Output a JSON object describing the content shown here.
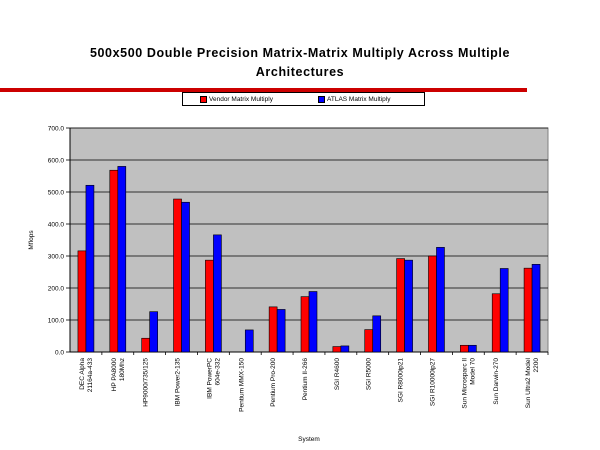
{
  "title_lines": [
    "500x500 Double Precision Matrix-Matrix Multiply Across Multiple",
    "Architectures"
  ],
  "colors": {
    "rule": "#cc0000",
    "plot_bg": "#c0c0c0"
  },
  "chart_data": {
    "type": "bar",
    "title": "500x500 Double Precision Matrix-Matrix Multiply Across Multiple Architectures",
    "xlabel": "System",
    "ylabel": "Mflops",
    "ylim": [
      0,
      700
    ],
    "yticks": [
      "0.0",
      "100.0",
      "200.0",
      "300.0",
      "400.0",
      "500.0",
      "600.0",
      "700.0"
    ],
    "grid": true,
    "legend_position": "top",
    "categories": [
      [
        "DEC Alpha",
        "21164a-433"
      ],
      [
        "HP PA8000",
        "180Mhz"
      ],
      [
        "HP9000/735/125"
      ],
      [
        "IBM Power2-135"
      ],
      [
        "IBM PowerPC",
        "604e-332"
      ],
      [
        "Pentium MMX-150"
      ],
      [
        "Pentium Pro-200"
      ],
      [
        "Pentium II-266"
      ],
      [
        "SGI R4600"
      ],
      [
        "SGI R5000"
      ],
      [
        "SGI R8000ip21"
      ],
      [
        "SGI R10000ip27"
      ],
      [
        "Sun Microsparc II",
        "Model 70"
      ],
      [
        "Sun Darwin-270"
      ],
      [
        "Sun Ultra2 Model",
        "2200"
      ]
    ],
    "series": [
      {
        "name": "Vendor Matrix Multiply",
        "color": "#ff0000",
        "values": [
          316,
          568,
          43,
          478,
          287,
          0,
          141,
          173,
          17,
          70,
          292,
          300,
          21,
          182,
          262
        ]
      },
      {
        "name": "ATLAS Matrix Multiply",
        "color": "#0000ff",
        "values": [
          521,
          580,
          126,
          468,
          366,
          69,
          133,
          189,
          19,
          113,
          287,
          327,
          21,
          261,
          274
        ]
      }
    ]
  }
}
